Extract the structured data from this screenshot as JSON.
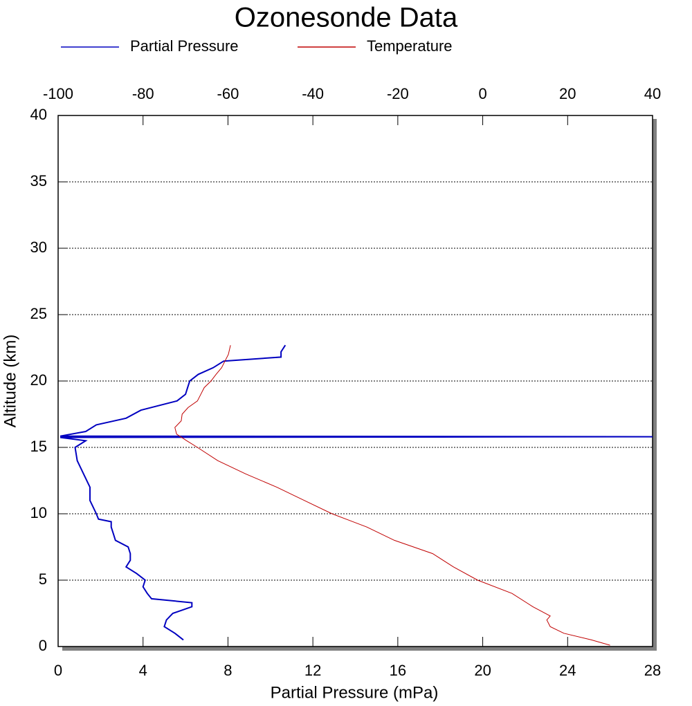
{
  "chart_data": {
    "type": "line",
    "title": "Ozonesonde Data",
    "xlabel": "Partial Pressure (mPa)",
    "ylabel": "Altitude (km)",
    "xlim": [
      0,
      28
    ],
    "xticks": [
      0,
      4,
      8,
      12,
      16,
      20,
      24,
      28
    ],
    "x2lim": [
      -100,
      40
    ],
    "x2ticks": [
      -100,
      -80,
      -60,
      -40,
      -20,
      0,
      20,
      40
    ],
    "ylim": [
      0,
      40
    ],
    "yticks": [
      0,
      5,
      10,
      15,
      20,
      25,
      30,
      35,
      40
    ],
    "grid": true,
    "series": [
      {
        "name": "Partial Pressure",
        "color": "#0000c0",
        "y": [
          0.5,
          1.0,
          1.5,
          2.0,
          2.5,
          3.0,
          3.3,
          3.6,
          4.0,
          4.5,
          5.0,
          5.5,
          6.0,
          6.5,
          7.0,
          7.5,
          8.0,
          8.5,
          9.0,
          9.4,
          9.6,
          10.0,
          11.0,
          12.0,
          13.0,
          14.0,
          15.0,
          15.5,
          15.75,
          15.8,
          15.85,
          16.2,
          16.7,
          17.2,
          17.8,
          18.5,
          19.0,
          19.5,
          20.0,
          20.5,
          21.0,
          21.5,
          21.8,
          22.2,
          22.7
        ],
        "values": [
          5.9,
          5.5,
          5.0,
          5.1,
          5.4,
          6.3,
          6.3,
          4.4,
          4.2,
          4.0,
          4.1,
          3.7,
          3.2,
          3.4,
          3.4,
          3.3,
          2.7,
          2.6,
          2.5,
          2.5,
          1.9,
          1.8,
          1.5,
          1.5,
          1.2,
          0.9,
          0.8,
          1.3,
          0.1,
          28,
          0.1,
          1.3,
          1.8,
          3.2,
          3.9,
          5.6,
          6.0,
          6.1,
          6.2,
          6.6,
          7.3,
          7.8,
          10.5,
          10.5,
          10.7
        ]
      },
      {
        "name": "Temperature",
        "color": "#c00000",
        "axis": "x2",
        "y": [
          0.1,
          0.5,
          1.0,
          1.5,
          2.0,
          2.3,
          3.0,
          4.0,
          5.0,
          6.0,
          7.0,
          8.0,
          9.0,
          10.0,
          11.0,
          12.0,
          13.0,
          14.0,
          15.0,
          15.5,
          16.0,
          16.5,
          17.0,
          17.5,
          18.0,
          18.5,
          19.0,
          19.5,
          20.0,
          20.5,
          21.0,
          21.5,
          22.0,
          22.7
        ],
        "values": [
          30.0,
          25.6,
          19.1,
          15.9,
          15.1,
          15.9,
          11.8,
          6.9,
          -1.2,
          -6.9,
          -11.8,
          -20.8,
          -27.3,
          -35.5,
          -42.0,
          -48.5,
          -55.8,
          -62.4,
          -67.2,
          -69.7,
          -72.1,
          -72.5,
          -71.0,
          -70.8,
          -69.4,
          -67.2,
          -66.4,
          -65.6,
          -64.0,
          -62.8,
          -61.5,
          -60.7,
          -59.9,
          -59.4
        ]
      }
    ]
  }
}
